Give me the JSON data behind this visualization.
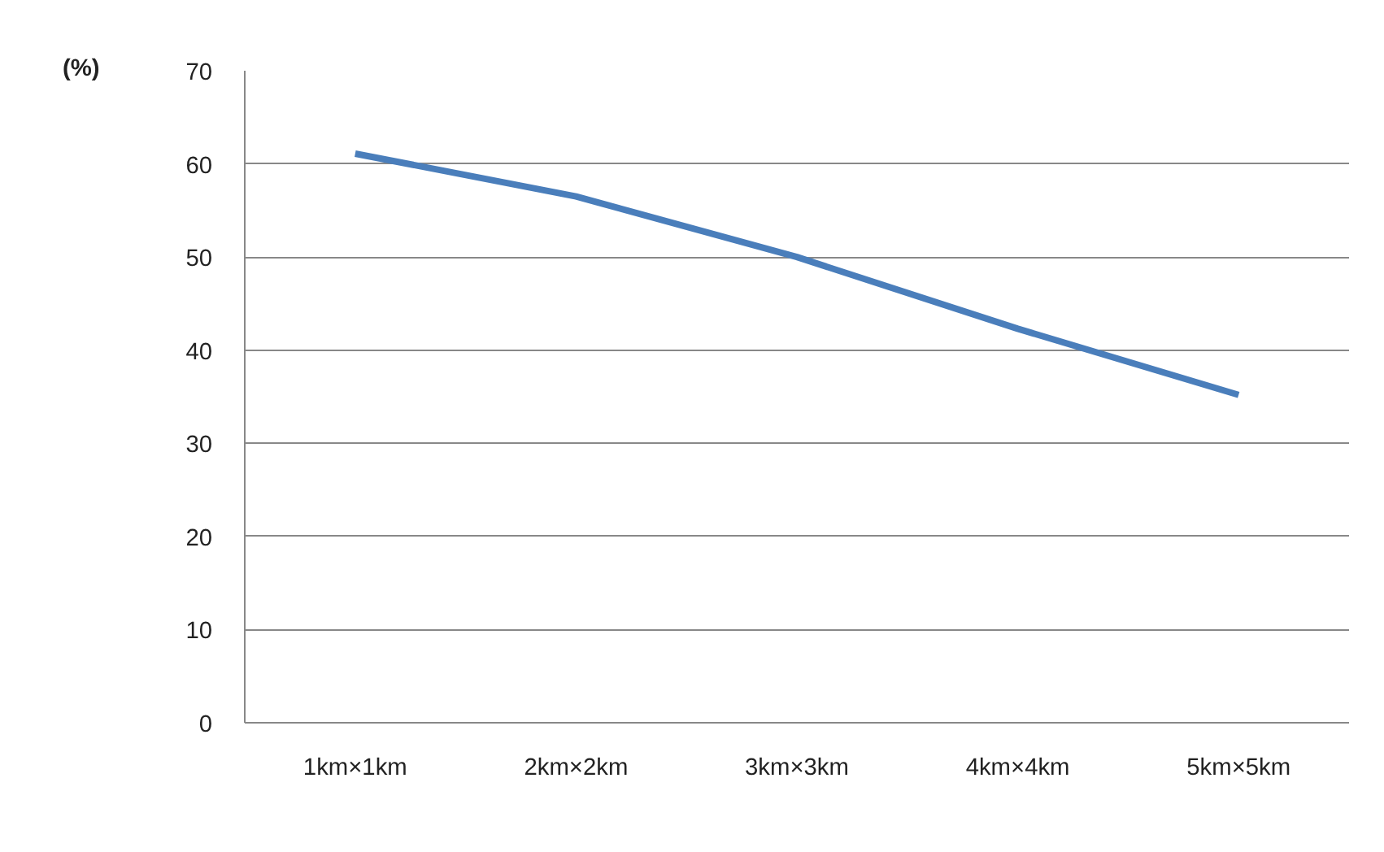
{
  "chart_data": {
    "type": "line",
    "ylabel": "(%)",
    "categories": [
      "1km×1km",
      "2km×2km",
      "3km×3km",
      "4km×4km",
      "5km×5km"
    ],
    "series": [
      {
        "color": "#4a7ebb",
        "values": [
          61.1,
          56.5,
          50.0,
          42.3,
          35.2
        ]
      }
    ],
    "ylim": [
      0,
      70
    ],
    "yticks": [
      0,
      10,
      20,
      30,
      40,
      50,
      60,
      70
    ],
    "grid": "y",
    "marker": "none",
    "line_style": "solid"
  }
}
